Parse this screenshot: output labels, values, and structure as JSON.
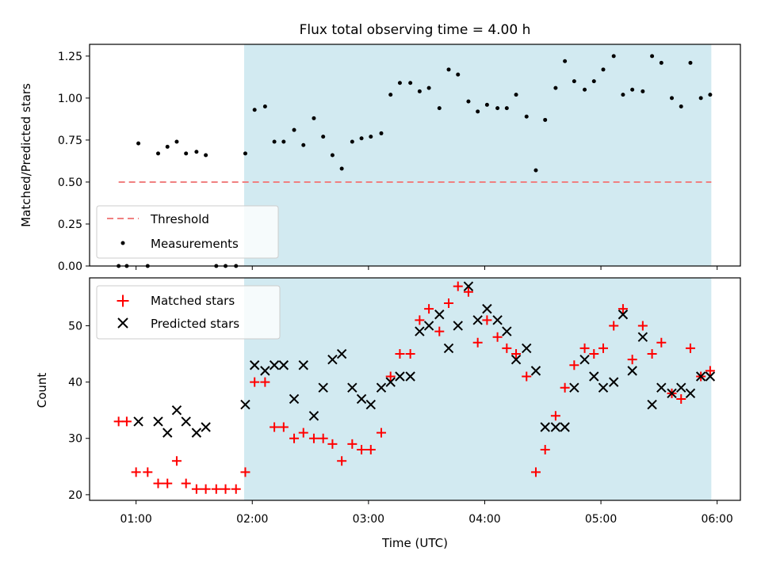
{
  "chart_data": [
    {
      "type": "scatter",
      "title": "Flux total observing time = 4.00 h",
      "xlabel": "",
      "ylabel": "Matched/Predicted stars",
      "x_unit": "hours UTC",
      "xlim": [
        0.6,
        6.2
      ],
      "ylim": [
        0.0,
        1.32
      ],
      "yticks": [
        0.0,
        0.25,
        0.5,
        0.75,
        1.0,
        1.25
      ],
      "ytick_labels": [
        "0.00",
        "0.25",
        "0.50",
        "0.75",
        "1.00",
        "1.25"
      ],
      "observing_window": [
        1.93,
        5.95
      ],
      "window_color": "#add8e6",
      "threshold": {
        "name": "Threshold",
        "value": 0.5,
        "x_range": [
          0.85,
          5.95
        ],
        "color": "#f08080",
        "style": "dashed"
      },
      "series": [
        {
          "name": "Measurements",
          "color": "#000000",
          "marker": "dot",
          "x": [
            0.85,
            0.92,
            1.02,
            1.1,
            1.19,
            1.27,
            1.35,
            1.43,
            1.52,
            1.6,
            1.69,
            1.77,
            1.86,
            1.94,
            2.02,
            2.11,
            2.19,
            2.27,
            2.36,
            2.44,
            2.53,
            2.61,
            2.69,
            2.77,
            2.86,
            2.94,
            3.02,
            3.11,
            3.19,
            3.27,
            3.36,
            3.44,
            3.52,
            3.61,
            3.69,
            3.77,
            3.86,
            3.94,
            4.02,
            4.11,
            4.19,
            4.27,
            4.36,
            4.44,
            4.52,
            4.61,
            4.69,
            4.77,
            4.86,
            4.94,
            5.02,
            5.11,
            5.19,
            5.27,
            5.36,
            5.44,
            5.52,
            5.61,
            5.69,
            5.77,
            5.86,
            5.94
          ],
          "y": [
            0.0,
            0.0,
            0.73,
            0.0,
            0.67,
            0.71,
            0.74,
            0.67,
            0.68,
            0.66,
            0.0,
            0.0,
            0.0,
            0.67,
            0.93,
            0.95,
            0.74,
            0.74,
            0.81,
            0.72,
            0.88,
            0.77,
            0.66,
            0.58,
            0.74,
            0.76,
            0.77,
            0.79,
            1.02,
            1.09,
            1.09,
            1.04,
            1.06,
            0.94,
            1.17,
            1.14,
            0.98,
            0.92,
            0.96,
            0.94,
            0.94,
            1.02,
            0.89,
            0.57,
            0.87,
            1.06,
            1.22,
            1.1,
            1.05,
            1.1,
            1.17,
            1.25,
            1.02,
            1.05,
            1.04,
            1.25,
            1.21,
            1.0,
            0.95,
            1.21,
            1.0,
            1.02
          ]
        }
      ],
      "legend": {
        "position": "lower-left"
      }
    },
    {
      "type": "scatter",
      "title": "",
      "xlabel": "Time (UTC)",
      "ylabel": "Count",
      "x_unit": "hours UTC",
      "xlim": [
        0.6,
        6.2
      ],
      "ylim": [
        19,
        58.5
      ],
      "yticks": [
        20,
        30,
        40,
        50
      ],
      "ytick_labels": [
        "20",
        "30",
        "40",
        "50"
      ],
      "xticks": [
        1,
        2,
        3,
        4,
        5,
        6
      ],
      "xtick_labels": [
        "01:00",
        "02:00",
        "03:00",
        "04:00",
        "05:00",
        "06:00"
      ],
      "observing_window": [
        1.93,
        5.95
      ],
      "window_color": "#add8e6",
      "series": [
        {
          "name": "Matched stars",
          "color": "#ff0000",
          "marker": "plus",
          "x": [
            0.85,
            0.92,
            1.0,
            1.1,
            1.19,
            1.27,
            1.35,
            1.43,
            1.52,
            1.6,
            1.69,
            1.77,
            1.86,
            1.94,
            2.02,
            2.11,
            2.19,
            2.27,
            2.36,
            2.44,
            2.53,
            2.61,
            2.69,
            2.77,
            2.86,
            2.94,
            3.02,
            3.11,
            3.19,
            3.27,
            3.36,
            3.44,
            3.52,
            3.61,
            3.69,
            3.77,
            3.86,
            3.94,
            4.02,
            4.11,
            4.19,
            4.27,
            4.36,
            4.44,
            4.52,
            4.61,
            4.69,
            4.77,
            4.86,
            4.94,
            5.02,
            5.11,
            5.19,
            5.27,
            5.36,
            5.44,
            5.52,
            5.61,
            5.69,
            5.77,
            5.86,
            5.94
          ],
          "y": [
            33,
            33,
            24,
            24,
            22,
            22,
            26,
            22,
            21,
            21,
            21,
            21,
            21,
            24,
            40,
            40,
            32,
            32,
            30,
            31,
            30,
            30,
            29,
            26,
            29,
            28,
            28,
            31,
            41,
            45,
            45,
            51,
            53,
            49,
            54,
            57,
            56,
            47,
            51,
            48,
            46,
            45,
            41,
            24,
            28,
            34,
            39,
            43,
            46,
            45,
            46,
            50,
            53,
            44,
            50,
            45,
            47,
            38,
            37,
            46,
            41,
            42
          ]
        },
        {
          "name": "Predicted stars",
          "color": "#000000",
          "marker": "x",
          "x": [
            1.02,
            1.19,
            1.27,
            1.35,
            1.43,
            1.52,
            1.6,
            1.94,
            2.02,
            2.11,
            2.19,
            2.27,
            2.36,
            2.44,
            2.53,
            2.61,
            2.69,
            2.77,
            2.86,
            2.94,
            3.02,
            3.11,
            3.19,
            3.27,
            3.36,
            3.44,
            3.52,
            3.61,
            3.69,
            3.77,
            3.86,
            3.94,
            4.02,
            4.11,
            4.19,
            4.27,
            4.36,
            4.44,
            4.52,
            4.61,
            4.69,
            4.77,
            4.86,
            4.94,
            5.02,
            5.11,
            5.19,
            5.27,
            5.36,
            5.44,
            5.52,
            5.61,
            5.69,
            5.77,
            5.86,
            5.94
          ],
          "y": [
            33,
            33,
            31,
            35,
            33,
            31,
            32,
            36,
            43,
            42,
            43,
            43,
            37,
            43,
            34,
            39,
            44,
            45,
            39,
            37,
            36,
            39,
            40,
            41,
            41,
            49,
            50,
            52,
            46,
            50,
            57,
            51,
            53,
            51,
            49,
            44,
            46,
            42,
            32,
            32,
            32,
            39,
            44,
            41,
            39,
            40,
            52,
            42,
            48,
            36,
            39,
            38,
            39,
            38,
            41,
            41
          ]
        }
      ],
      "legend": {
        "position": "upper-left"
      }
    }
  ]
}
